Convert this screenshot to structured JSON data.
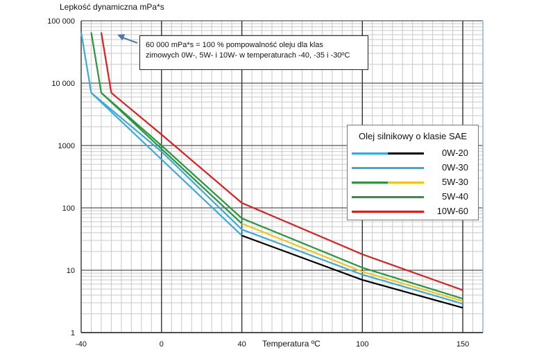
{
  "chart_data": {
    "type": "line",
    "title": "",
    "ylabel": "Lepkość dynamiczna mPa*s",
    "xlabel": "Temperatura ºC",
    "yscale": "log",
    "ylim": [
      1,
      100000
    ],
    "xlim": [
      -40,
      160
    ],
    "x_ticks": [
      -40,
      0,
      40,
      100,
      150
    ],
    "x_tick_labels": [
      "-40",
      "0",
      "40",
      "100",
      "150"
    ],
    "y_ticks": [
      1,
      10,
      100,
      1000,
      10000,
      100000
    ],
    "y_tick_labels": [
      "1",
      "10",
      "100",
      "1000",
      "10 000",
      "100 000"
    ],
    "annotation": {
      "line1": "60 000 mPa*s = 100 % pompowalność  oleju dla klas",
      "line2": "zimowych 0W-, 5W- i 10W- w temperaturach -40, -35 i -30ºC",
      "arrow_target": {
        "x": -22,
        "y": 60000
      }
    },
    "legend_title": "Olej silnikowy o klasie SAE",
    "series": [
      {
        "name": "0W-20",
        "colors": [
          "#3aa9dc",
          "#000000"
        ],
        "x": [
          -35,
          40,
          100,
          150
        ],
        "y": [
          7000,
          36,
          7,
          2.5
        ]
      },
      {
        "name": "0W-30",
        "colors": [
          "#3aa9dc"
        ],
        "x": [
          -40,
          -35,
          0,
          40,
          100,
          150
        ],
        "y": [
          65000,
          7000,
          800,
          45,
          8.5,
          2.9
        ]
      },
      {
        "name": "5W-30",
        "colors": [
          "#27963c",
          "#f2c318"
        ],
        "x": [
          -30,
          40,
          100,
          150
        ],
        "y": [
          7000,
          56,
          9.5,
          3.2
        ]
      },
      {
        "name": "5W-40",
        "colors": [
          "#27963c"
        ],
        "x": [
          -35,
          -30,
          0,
          40,
          100,
          150
        ],
        "y": [
          65000,
          7000,
          1000,
          68,
          11,
          3.5
        ]
      },
      {
        "name": "10W-60",
        "colors": [
          "#dc1e1e"
        ],
        "x": [
          -30,
          -25,
          0,
          40,
          100,
          150
        ],
        "y": [
          65000,
          7000,
          1500,
          120,
          18,
          4.8
        ]
      }
    ]
  }
}
